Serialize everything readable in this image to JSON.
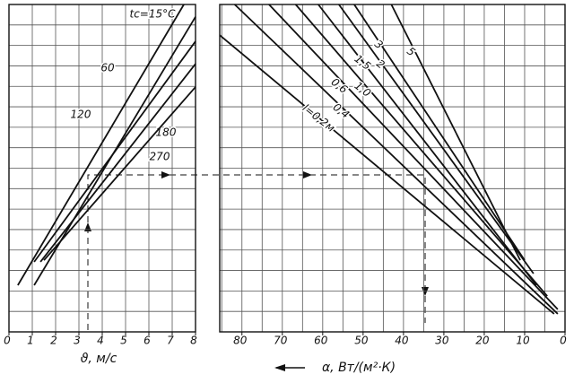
{
  "chart_data": [
    {
      "type": "line",
      "xlabel": "ϑ, м/с",
      "xlim": [
        0,
        8
      ],
      "ylim": [
        0,
        16
      ],
      "xticks": [
        0,
        1,
        2,
        3,
        4,
        5,
        6,
        7,
        8
      ],
      "xgrid": [
        0,
        1,
        2,
        3,
        4,
        5,
        6,
        7,
        8
      ],
      "ygrid": [
        0,
        1,
        2,
        3,
        4,
        5,
        6,
        7,
        8,
        9,
        10,
        11,
        12,
        13,
        14,
        15,
        16
      ],
      "color": "#111",
      "series": [
        {
          "name": "tc=15°C",
          "x": [
            0.38,
            7.5
          ],
          "values": [
            2.28,
            16
          ]
        },
        {
          "name": "60",
          "x": [
            1.08,
            8
          ],
          "values": [
            2.28,
            15.4
          ]
        },
        {
          "name": "120",
          "x": [
            1.08,
            8
          ],
          "values": [
            3.42,
            14.2
          ]
        },
        {
          "name": "180",
          "x": [
            1.35,
            8
          ],
          "values": [
            3.42,
            13.1
          ]
        },
        {
          "name": "270",
          "x": [
            1.5,
            8
          ],
          "values": [
            3.5,
            11.97
          ]
        }
      ]
    },
    {
      "type": "line",
      "xlabel": "α, Вт/(м²·К)",
      "xlim": [
        85.5,
        0
      ],
      "ylim": [
        0,
        16
      ],
      "xticks": [
        80,
        70,
        60,
        50,
        40,
        30,
        20,
        10,
        0
      ],
      "xgrid": [
        85,
        80,
        75,
        70,
        65,
        60,
        55,
        50,
        45,
        40,
        35,
        30,
        25,
        20,
        15,
        10,
        5,
        0
      ],
      "ygrid": [
        0,
        1,
        2,
        3,
        4,
        5,
        6,
        7,
        8,
        9,
        10,
        11,
        12,
        13,
        14,
        15,
        16
      ],
      "color": "#111",
      "series": [
        {
          "name": "l=0,2м",
          "x": [
            85.5,
            2.7
          ],
          "values": [
            14.5,
            0.88
          ]
        },
        {
          "name": "0,4",
          "x": [
            81.8,
            1.8
          ],
          "values": [
            16,
            0.88
          ]
        },
        {
          "name": "0,6",
          "x": [
            73.3,
            1.8
          ],
          "values": [
            16,
            1.1
          ]
        },
        {
          "name": "1,0",
          "x": [
            66.7,
            4.4
          ],
          "values": [
            16,
            1.75
          ]
        },
        {
          "name": "1,5",
          "x": [
            61.1,
            7.1
          ],
          "values": [
            16,
            2.28
          ]
        },
        {
          "name": "2",
          "x": [
            56,
            7.8
          ],
          "values": [
            16,
            2.85
          ]
        },
        {
          "name": "3",
          "x": [
            52.2,
            10
          ],
          "values": [
            16,
            3.5
          ]
        },
        {
          "name": "5",
          "x": [
            43,
            11.1
          ],
          "values": [
            16,
            3.5
          ]
        }
      ]
    }
  ]
}
